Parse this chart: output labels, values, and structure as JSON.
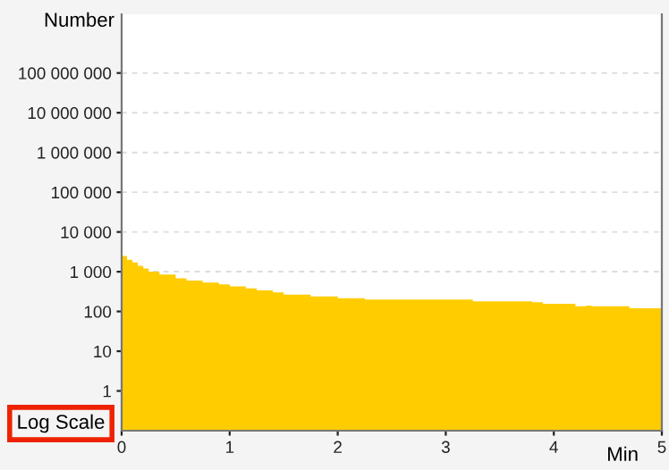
{
  "chart_data": {
    "type": "area",
    "ylabel": "Number",
    "xlabel": "Min",
    "annotations": [
      "Log Scale"
    ],
    "x": [
      0,
      0.05,
      0.1,
      0.15,
      0.2,
      0.25,
      0.35,
      0.5,
      0.6,
      0.75,
      0.9,
      1.0,
      1.15,
      1.25,
      1.4,
      1.5,
      1.75,
      2.0,
      2.1,
      2.25,
      3.25,
      3.8,
      3.9,
      4.2,
      4.3,
      4.35,
      4.7,
      5
    ],
    "series": [
      {
        "color": "#ffcc00",
        "values": [
          2500,
          2000,
          1700,
          1400,
          1200,
          1000,
          850,
          680,
          600,
          530,
          480,
          430,
          380,
          340,
          300,
          265,
          240,
          215,
          215,
          200,
          180,
          170,
          155,
          135,
          140,
          135,
          120,
          120
        ]
      }
    ],
    "log": "y",
    "xlim": [
      0,
      5
    ],
    "xticks": [
      0,
      1,
      2,
      3,
      4,
      5
    ],
    "ylim": [
      0.1,
      3000000000
    ],
    "yticks": [
      {
        "value": 1,
        "label": "1"
      },
      {
        "value": 10,
        "label": "10"
      },
      {
        "value": 100,
        "label": "100"
      },
      {
        "value": 1000,
        "label": "1 000"
      },
      {
        "value": 10000,
        "label": "10 000"
      },
      {
        "value": 100000,
        "label": "100 000"
      },
      {
        "value": 1000000,
        "label": "1 000 000"
      },
      {
        "value": 10000000,
        "label": "10 000 000"
      },
      {
        "value": 100000000,
        "label": "100 000 000"
      }
    ],
    "grid": "y",
    "legend": false
  }
}
